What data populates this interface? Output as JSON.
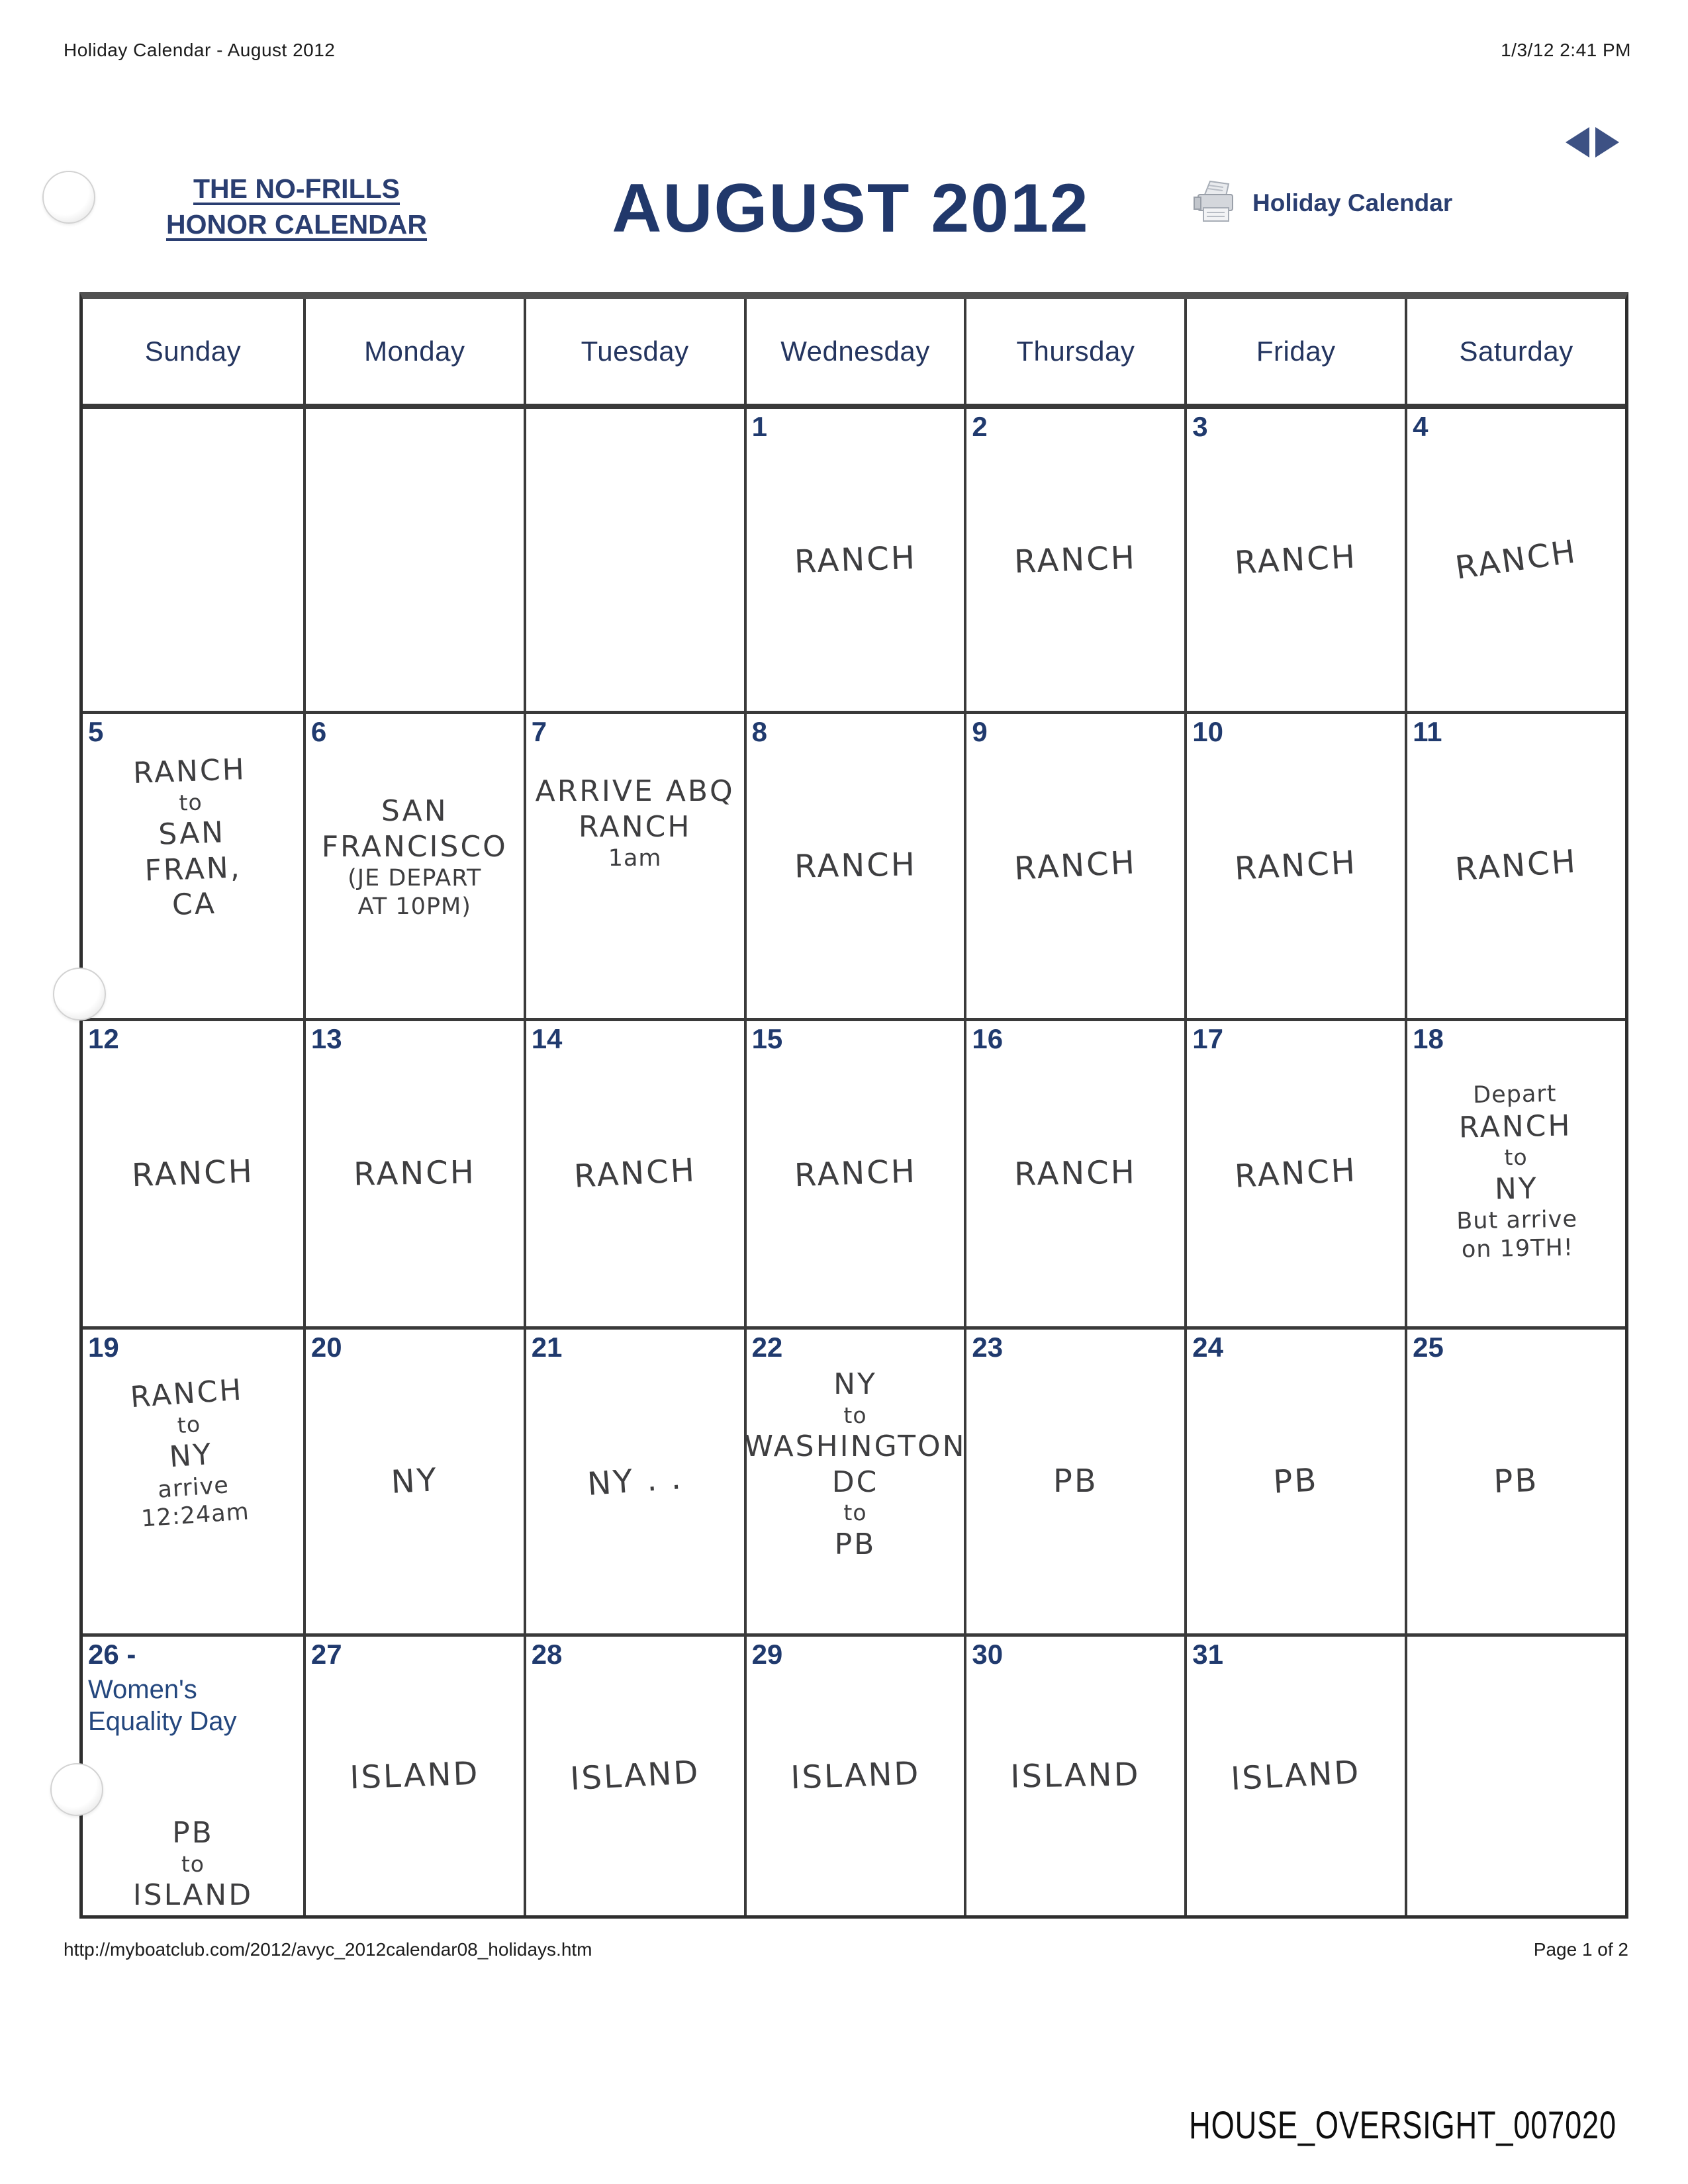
{
  "print_header": {
    "left": "Holiday Calendar - August 2012",
    "right": "1/3/12 2:41 PM"
  },
  "masthead": {
    "no_frills_line1": "THE NO-FRILLS",
    "no_frills_line2": "HONOR CALENDAR",
    "title": "AUGUST 2012",
    "print_link_label": "Holiday Calendar"
  },
  "calendar": {
    "weekdays": [
      "Sunday",
      "Monday",
      "Tuesday",
      "Wednesday",
      "Thursday",
      "Friday",
      "Saturday"
    ],
    "weeks": [
      [
        {
          "day": "",
          "entry": []
        },
        {
          "day": "",
          "entry": []
        },
        {
          "day": "",
          "entry": []
        },
        {
          "day": "1",
          "entry": [
            "RANCH"
          ]
        },
        {
          "day": "2",
          "entry": [
            "RANCH"
          ]
        },
        {
          "day": "3",
          "entry": [
            "RANCH"
          ]
        },
        {
          "day": "4",
          "entry": [
            "RANCH"
          ]
        }
      ],
      [
        {
          "day": "5",
          "entry": [
            "RANCH",
            "to",
            "SAN",
            "FRAN,",
            "CA"
          ]
        },
        {
          "day": "6",
          "entry": [
            "SAN",
            "FRANCISCO",
            "(JE DEPART",
            "AT 10PM)"
          ]
        },
        {
          "day": "7",
          "entry": [
            "ARRIVE ABQ",
            "RANCH",
            "1am"
          ]
        },
        {
          "day": "8",
          "entry": [
            "RANCH"
          ]
        },
        {
          "day": "9",
          "entry": [
            "RANCH"
          ]
        },
        {
          "day": "10",
          "entry": [
            "RANCH"
          ]
        },
        {
          "day": "11",
          "entry": [
            "RANCH"
          ]
        }
      ],
      [
        {
          "day": "12",
          "entry": [
            "RANCH"
          ]
        },
        {
          "day": "13",
          "entry": [
            "RANCH"
          ]
        },
        {
          "day": "14",
          "entry": [
            "RANCH"
          ]
        },
        {
          "day": "15",
          "entry": [
            "RANCH"
          ]
        },
        {
          "day": "16",
          "entry": [
            "RANCH"
          ]
        },
        {
          "day": "17",
          "entry": [
            "RANCH"
          ]
        },
        {
          "day": "18",
          "entry": [
            "Depart",
            "RANCH",
            "to",
            "NY",
            "But arrive",
            "on 19TH!"
          ]
        }
      ],
      [
        {
          "day": "19",
          "entry": [
            "RANCH",
            "to",
            "NY",
            "arrive",
            "12:24am"
          ]
        },
        {
          "day": "20",
          "entry": [
            "NY"
          ]
        },
        {
          "day": "21",
          "entry": [
            "NY . ."
          ]
        },
        {
          "day": "22",
          "entry": [
            "NY",
            "to",
            "WASHINGTON",
            "DC",
            "to",
            "PB"
          ]
        },
        {
          "day": "23",
          "entry": [
            "PB"
          ]
        },
        {
          "day": "24",
          "entry": [
            "PB"
          ]
        },
        {
          "day": "25",
          "entry": [
            "PB"
          ]
        }
      ],
      [
        {
          "day": "26",
          "day_suffix": " -",
          "holiday": [
            "Women's",
            "Equality Day"
          ],
          "entry": [
            "PB",
            "to",
            "ISLAND"
          ]
        },
        {
          "day": "27",
          "entry": [
            "ISLAND"
          ]
        },
        {
          "day": "28",
          "entry": [
            "ISLAND"
          ]
        },
        {
          "day": "29",
          "entry": [
            "ISLAND"
          ]
        },
        {
          "day": "30",
          "entry": [
            "ISLAND"
          ]
        },
        {
          "day": "31",
          "entry": [
            "ISLAND"
          ]
        },
        {
          "day": "",
          "entry": []
        }
      ]
    ]
  },
  "footer": {
    "url": "http://myboatclub.com/2012/avyc_2012calendar08_holidays.htm",
    "page": "Page 1 of 2",
    "bates_number": "HOUSE_OVERSIGHT_007020"
  }
}
